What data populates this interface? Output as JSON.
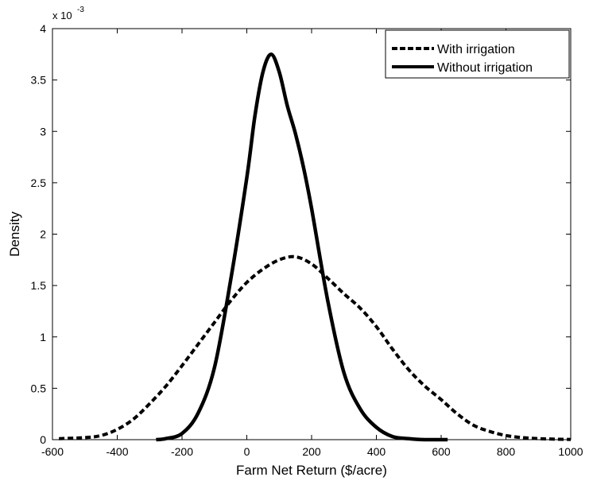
{
  "chart_data": {
    "type": "line",
    "title": "",
    "xlabel": "Farm Net Return ($/acre)",
    "ylabel": "Density",
    "xlim": [
      -600,
      1000
    ],
    "ylim": [
      0,
      0.004
    ],
    "y_scale_label": {
      "base": "x 10",
      "exponent": "-3"
    },
    "x_ticks": [
      -600,
      -400,
      -200,
      0,
      200,
      400,
      600,
      800,
      1000
    ],
    "x_tick_labels": [
      "-600",
      "-400",
      "-200",
      "0",
      "200",
      "400",
      "600",
      "800",
      "1000"
    ],
    "y_ticks": [
      0,
      0.0005,
      0.001,
      0.0015,
      0.002,
      0.0025,
      0.003,
      0.0035,
      0.004
    ],
    "y_tick_labels": [
      "0",
      "0.5",
      "1",
      "1.5",
      "2",
      "2.5",
      "3",
      "3.5",
      "4"
    ],
    "grid": false,
    "legend_position": "top-right",
    "series": [
      {
        "name": "With irrigation",
        "line_style": "dashed",
        "color": "#000000",
        "x": [
          -580,
          -500,
          -450,
          -400,
          -350,
          -300,
          -250,
          -200,
          -150,
          -100,
          -50,
          0,
          50,
          100,
          150,
          200,
          250,
          300,
          350,
          400,
          450,
          500,
          550,
          600,
          650,
          700,
          750,
          800,
          850,
          900,
          950,
          1000
        ],
        "y": [
          1e-05,
          2e-05,
          4e-05,
          0.0001,
          0.0002,
          0.00035,
          0.00052,
          0.00072,
          0.00093,
          0.00114,
          0.00135,
          0.00153,
          0.00166,
          0.00175,
          0.00178,
          0.00171,
          0.00157,
          0.00142,
          0.00128,
          0.0011,
          0.00088,
          0.00068,
          0.00052,
          0.00039,
          0.00025,
          0.00014,
          8e-05,
          4e-05,
          2e-05,
          1e-05,
          5e-06,
          2e-06
        ]
      },
      {
        "name": "Without irrigation",
        "line_style": "solid",
        "color": "#000000",
        "x": [
          -280,
          -250,
          -200,
          -150,
          -100,
          -50,
          0,
          25,
          50,
          75,
          100,
          125,
          150,
          175,
          200,
          250,
          300,
          350,
          400,
          450,
          500,
          550,
          620
        ],
        "y": [
          0,
          1e-05,
          6e-05,
          0.00026,
          0.0007,
          0.00155,
          0.00255,
          0.00315,
          0.00358,
          0.00375,
          0.00358,
          0.00325,
          0.00298,
          0.00265,
          0.00225,
          0.00135,
          0.00065,
          0.0003,
          0.00012,
          3e-05,
          1e-05,
          0,
          0
        ]
      }
    ]
  }
}
